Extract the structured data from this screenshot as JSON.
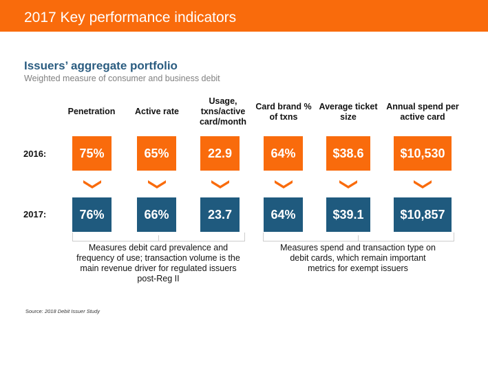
{
  "header": {
    "title": "2017 Key performance indicators"
  },
  "section": {
    "title": "Issuers’ aggregate portfolio",
    "subtitle": "Weighted measure of consumer and business debit"
  },
  "row_labels": {
    "y2016": "2016:",
    "y2017": "2017:"
  },
  "columns": [
    {
      "label": "Penetration",
      "v2016": "75%",
      "v2017": "76%"
    },
    {
      "label": "Active rate",
      "v2016": "65%",
      "v2017": "66%"
    },
    {
      "label": "Usage, txns/active card/month",
      "v2016": "22.9",
      "v2017": "23.7"
    },
    {
      "label": "Card brand % of txns",
      "v2016": "64%",
      "v2017": "64%"
    },
    {
      "label": "Average ticket size",
      "v2016": "$38.6",
      "v2017": "$39.1"
    },
    {
      "label": "Annual spend per active card",
      "v2016": "$10,530",
      "v2017": "$10,857"
    }
  ],
  "notes": {
    "left": "Measures debit card prevalence and frequency of use; transaction volume is the main revenue driver for regulated issuers post-Reg II",
    "right": "Measures spend and transaction type on debit cards, which remain important metrics for exempt issuers"
  },
  "source": {
    "prefix": "Source: ",
    "text": "2018 Debit Issuer Study"
  },
  "colors": {
    "orange": "#F96B0C",
    "blue": "#1F5A7E",
    "title_blue": "#2A5C80"
  }
}
